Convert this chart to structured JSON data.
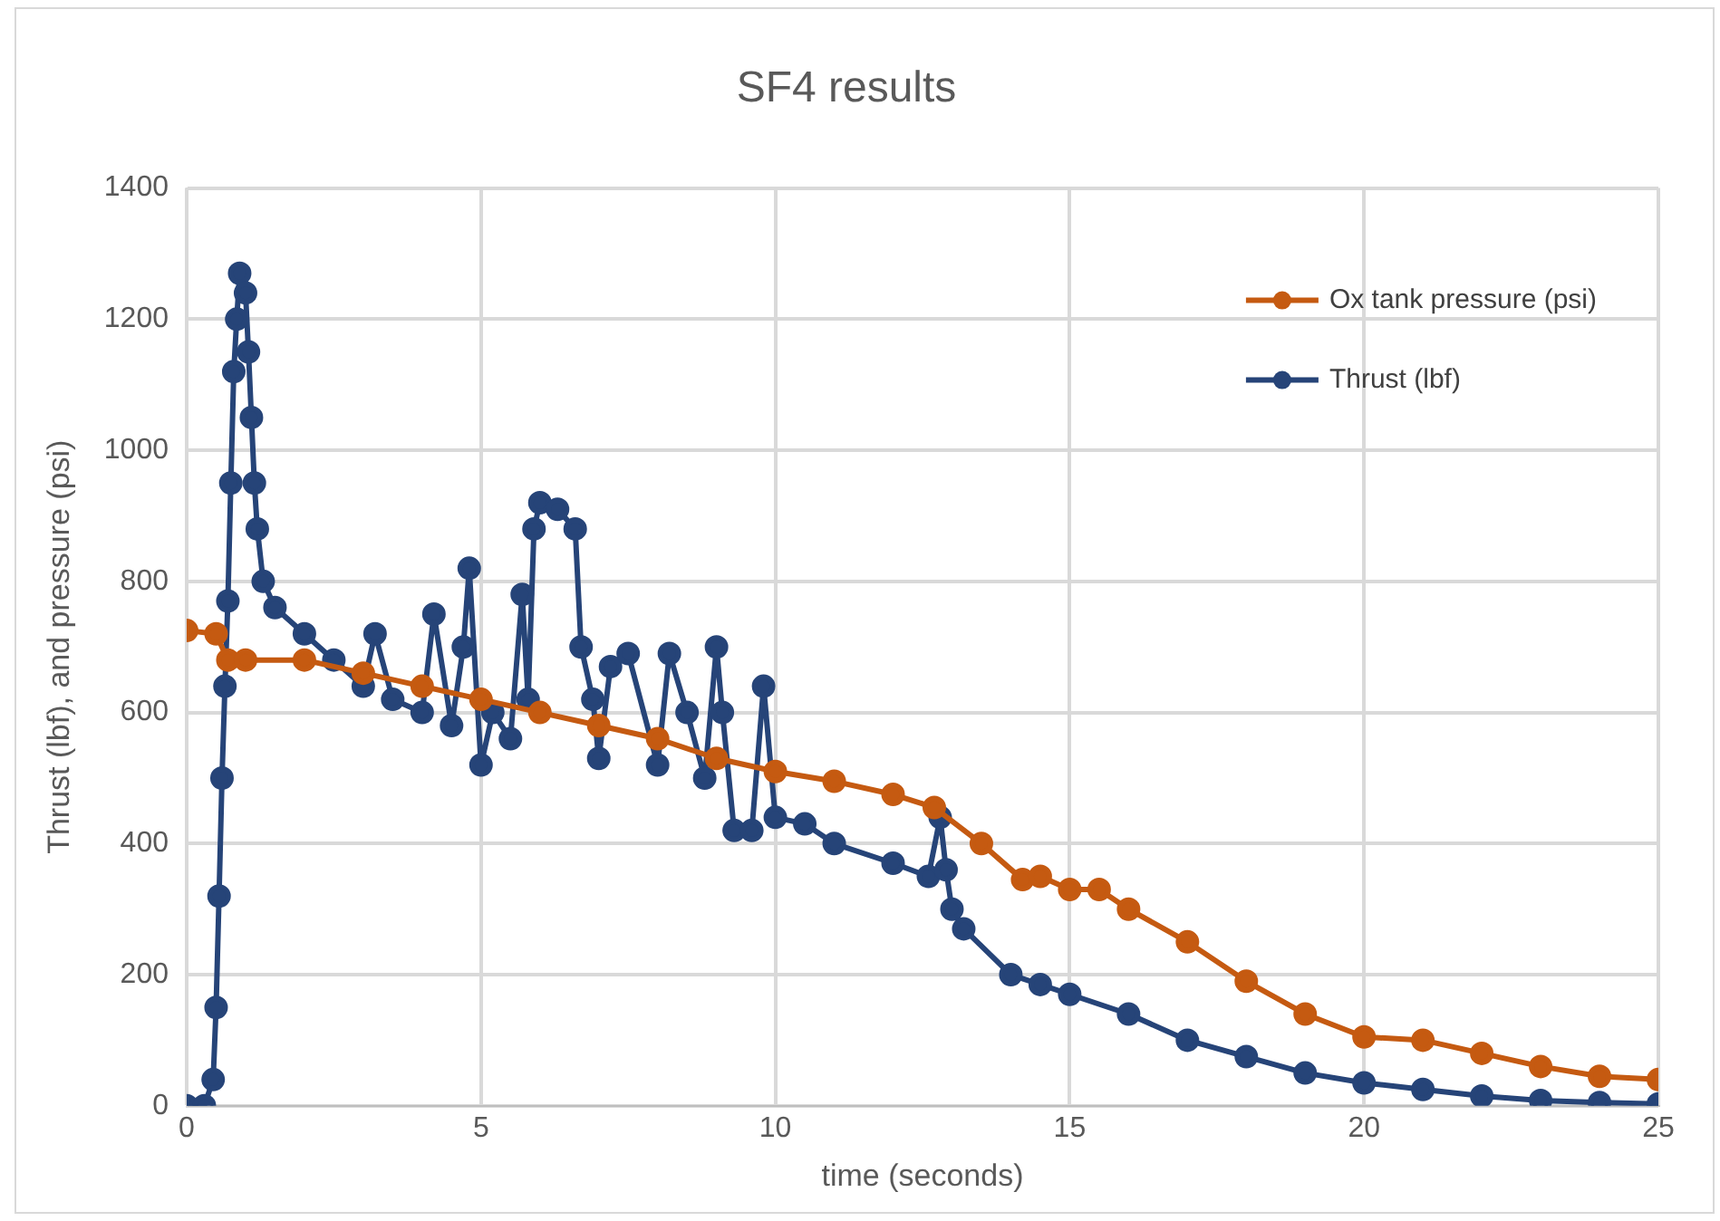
{
  "chart_data": {
    "type": "line",
    "title": "SF4 results",
    "xlabel": "time (seconds)",
    "ylabel": "Thrust (lbf), and pressure (psi)",
    "xlim": [
      0,
      25
    ],
    "xticks": [
      0,
      5,
      10,
      15,
      20,
      25
    ],
    "ylim": [
      0,
      1400
    ],
    "yticks": [
      0,
      200,
      400,
      600,
      800,
      1000,
      1200,
      1400
    ],
    "grid": true,
    "legend": "top right",
    "marker": "circle",
    "line_style": "solid",
    "series": [
      {
        "name": "Ox tank pressure (psi)",
        "color": "#c55a11",
        "x": [
          0,
          0.5,
          0.7,
          1,
          2,
          3,
          4,
          5,
          6,
          7,
          8,
          9,
          10,
          11,
          12,
          12.7,
          13.5,
          14.2,
          14.5,
          15,
          15.5,
          16,
          17,
          18,
          19,
          20,
          21,
          22,
          23,
          24,
          25
        ],
        "values": [
          725,
          720,
          680,
          680,
          680,
          660,
          640,
          620,
          600,
          580,
          560,
          530,
          510,
          495,
          475,
          455,
          400,
          345,
          350,
          330,
          330,
          300,
          250,
          190,
          140,
          105,
          100,
          80,
          60,
          45,
          40
        ]
      },
      {
        "name": "Thrust (lbf)",
        "color": "#264478",
        "x": [
          0,
          0.3,
          0.45,
          0.5,
          0.55,
          0.6,
          0.65,
          0.7,
          0.75,
          0.8,
          0.85,
          0.9,
          1,
          1.05,
          1.1,
          1.15,
          1.2,
          1.3,
          1.5,
          2,
          2.5,
          3,
          3.2,
          3.5,
          4,
          4.2,
          4.5,
          4.7,
          4.8,
          5,
          5.2,
          5.5,
          5.7,
          5.8,
          5.9,
          6,
          6.3,
          6.6,
          6.7,
          6.9,
          7,
          7.2,
          7.5,
          8,
          8.2,
          8.5,
          8.8,
          9,
          9.1,
          9.3,
          9.6,
          9.8,
          10,
          10.5,
          11,
          12,
          12.6,
          12.8,
          12.9,
          13,
          13.2,
          14,
          14.5,
          15,
          16,
          17,
          18,
          19,
          20,
          21,
          22,
          23,
          24,
          25
        ],
        "values": [
          0,
          0,
          40,
          150,
          320,
          500,
          640,
          770,
          950,
          1120,
          1200,
          1270,
          1240,
          1150,
          1050,
          950,
          880,
          800,
          760,
          720,
          680,
          640,
          720,
          620,
          600,
          750,
          580,
          700,
          820,
          520,
          600,
          560,
          780,
          620,
          880,
          920,
          910,
          880,
          700,
          620,
          530,
          670,
          690,
          520,
          690,
          600,
          500,
          700,
          600,
          420,
          420,
          640,
          440,
          430,
          400,
          370,
          350,
          440,
          360,
          300,
          270,
          200,
          185,
          170,
          140,
          100,
          75,
          50,
          35,
          25,
          15,
          8,
          5,
          3
        ]
      }
    ]
  }
}
